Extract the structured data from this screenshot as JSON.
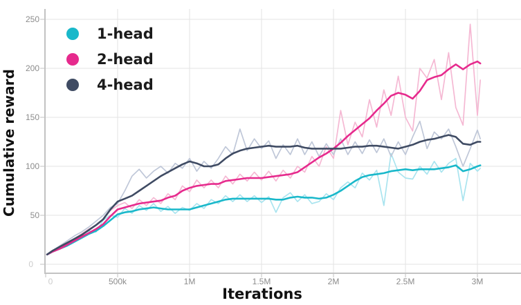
{
  "chart_data": {
    "type": "line",
    "title": "",
    "xlabel": "Iterations",
    "ylabel": "Cumulative reward",
    "x_unit": "iterations (millions)",
    "xlim": [
      0,
      3.3
    ],
    "ylim": [
      -9,
      252
    ],
    "grid": true,
    "legend_position": "top-left",
    "x_ticks": [
      {
        "value": 0,
        "label": "0"
      },
      {
        "value": 0.5,
        "label": "500k"
      },
      {
        "value": 1,
        "label": "1M"
      },
      {
        "value": 1.5,
        "label": "1.5M"
      },
      {
        "value": 2,
        "label": "2M"
      },
      {
        "value": 2.5,
        "label": "2.5M"
      },
      {
        "value": 3,
        "label": "3M"
      }
    ],
    "y_ticks": [
      {
        "value": 0,
        "label": "0"
      },
      {
        "value": 50,
        "label": "50"
      },
      {
        "value": 100,
        "label": "100"
      },
      {
        "value": 150,
        "label": "150"
      },
      {
        "value": 200,
        "label": "200"
      },
      {
        "value": 250,
        "label": "250"
      }
    ],
    "x": [
      0.01,
      0.05,
      0.1,
      0.15,
      0.2,
      0.25,
      0.3,
      0.35,
      0.4,
      0.45,
      0.5,
      0.55,
      0.6,
      0.65,
      0.7,
      0.75,
      0.8,
      0.85,
      0.9,
      0.95,
      1.0,
      1.05,
      1.1,
      1.15,
      1.2,
      1.25,
      1.3,
      1.35,
      1.4,
      1.45,
      1.5,
      1.55,
      1.6,
      1.65,
      1.7,
      1.75,
      1.8,
      1.85,
      1.9,
      1.95,
      2.0,
      2.05,
      2.1,
      2.15,
      2.2,
      2.25,
      2.3,
      2.35,
      2.4,
      2.45,
      2.5,
      2.55,
      2.6,
      2.65,
      2.7,
      2.75,
      2.8,
      2.85,
      2.9,
      2.95,
      3.0,
      3.02
    ],
    "series": [
      {
        "name": "1-head",
        "color": "#19b8ca",
        "raw_color": "#a9e4ef",
        "smoothed": [
          10,
          13,
          16,
          19,
          23,
          27,
          31,
          34,
          39,
          45,
          51,
          53,
          54,
          56,
          57,
          58,
          57,
          56,
          56,
          56,
          56,
          58,
          60,
          62,
          64,
          66,
          67,
          67,
          67,
          67,
          67,
          67,
          66,
          66,
          68,
          69,
          68,
          68,
          67,
          68,
          71,
          75,
          80,
          85,
          89,
          91,
          92,
          93,
          95,
          96,
          97,
          96,
          97,
          97,
          97,
          98,
          99,
          101,
          95,
          97,
          100,
          101
        ],
        "raw": [
          10,
          14,
          18,
          21,
          26,
          30,
          34,
          33,
          45,
          50,
          48,
          57,
          52,
          60,
          55,
          62,
          54,
          59,
          52,
          58,
          55,
          62,
          57,
          66,
          62,
          70,
          64,
          71,
          64,
          70,
          63,
          69,
          53,
          68,
          73,
          64,
          71,
          62,
          64,
          72,
          66,
          78,
          84,
          78,
          93,
          86,
          96,
          60,
          113,
          94,
          88,
          87,
          100,
          92,
          105,
          94,
          103,
          108,
          65,
          103,
          95,
          98
        ]
      },
      {
        "name": "2-head",
        "color": "#e62a8d",
        "raw_color": "#f5b8d3",
        "smoothed": [
          10,
          13,
          16,
          20,
          24,
          28,
          32,
          36,
          41,
          49,
          56,
          58,
          60,
          62,
          63,
          64,
          65,
          68,
          70,
          75,
          78,
          80,
          81,
          82,
          82,
          85,
          86,
          87,
          88,
          88,
          88,
          89,
          90,
          91,
          92,
          94,
          99,
          104,
          109,
          113,
          118,
          124,
          131,
          137,
          143,
          149,
          157,
          164,
          172,
          175,
          173,
          169,
          177,
          188,
          191,
          193,
          199,
          204,
          199,
          204,
          207,
          205
        ],
        "raw": [
          10,
          14,
          17,
          22,
          26,
          31,
          36,
          40,
          46,
          55,
          60,
          63,
          57,
          66,
          60,
          68,
          62,
          72,
          66,
          80,
          74,
          86,
          78,
          86,
          78,
          90,
          82,
          92,
          85,
          94,
          86,
          95,
          85,
          96,
          88,
          100,
          94,
          110,
          100,
          120,
          108,
          157,
          122,
          145,
          130,
          168,
          140,
          178,
          152,
          192,
          150,
          136,
          200,
          190,
          209,
          168,
          216,
          160,
          142,
          245,
          152,
          188
        ]
      },
      {
        "name": "4-head",
        "color": "#3f4b63",
        "raw_color": "#bfc7d8",
        "smoothed": [
          10,
          14,
          18,
          22,
          26,
          30,
          35,
          40,
          46,
          56,
          64,
          67,
          70,
          75,
          80,
          85,
          90,
          94,
          98,
          102,
          105,
          103,
          100,
          100,
          102,
          108,
          113,
          116,
          118,
          119,
          120,
          121,
          120,
          120,
          120,
          121,
          119,
          118,
          118,
          118,
          118,
          118,
          119,
          120,
          120,
          121,
          121,
          120,
          119,
          118,
          120,
          122,
          125,
          127,
          128,
          130,
          132,
          130,
          123,
          122,
          125,
          125
        ],
        "raw": [
          10,
          14,
          19,
          24,
          29,
          33,
          38,
          44,
          50,
          58,
          62,
          75,
          90,
          97,
          88,
          95,
          100,
          93,
          103,
          98,
          108,
          95,
          105,
          98,
          108,
          120,
          112,
          138,
          116,
          128,
          118,
          126,
          108,
          122,
          112,
          128,
          112,
          125,
          110,
          123,
          112,
          128,
          112,
          125,
          113,
          127,
          114,
          128,
          110,
          125,
          112,
          130,
          146,
          118,
          135,
          128,
          138,
          120,
          100,
          118,
          137,
          128
        ]
      }
    ],
    "style": {
      "grid_color": "#e3e3e3",
      "axis_color": "#c2c2c2",
      "tick_label_color": "#8b8b8b",
      "zero_label_color": "#cccccc",
      "title_color": "#111111"
    }
  }
}
